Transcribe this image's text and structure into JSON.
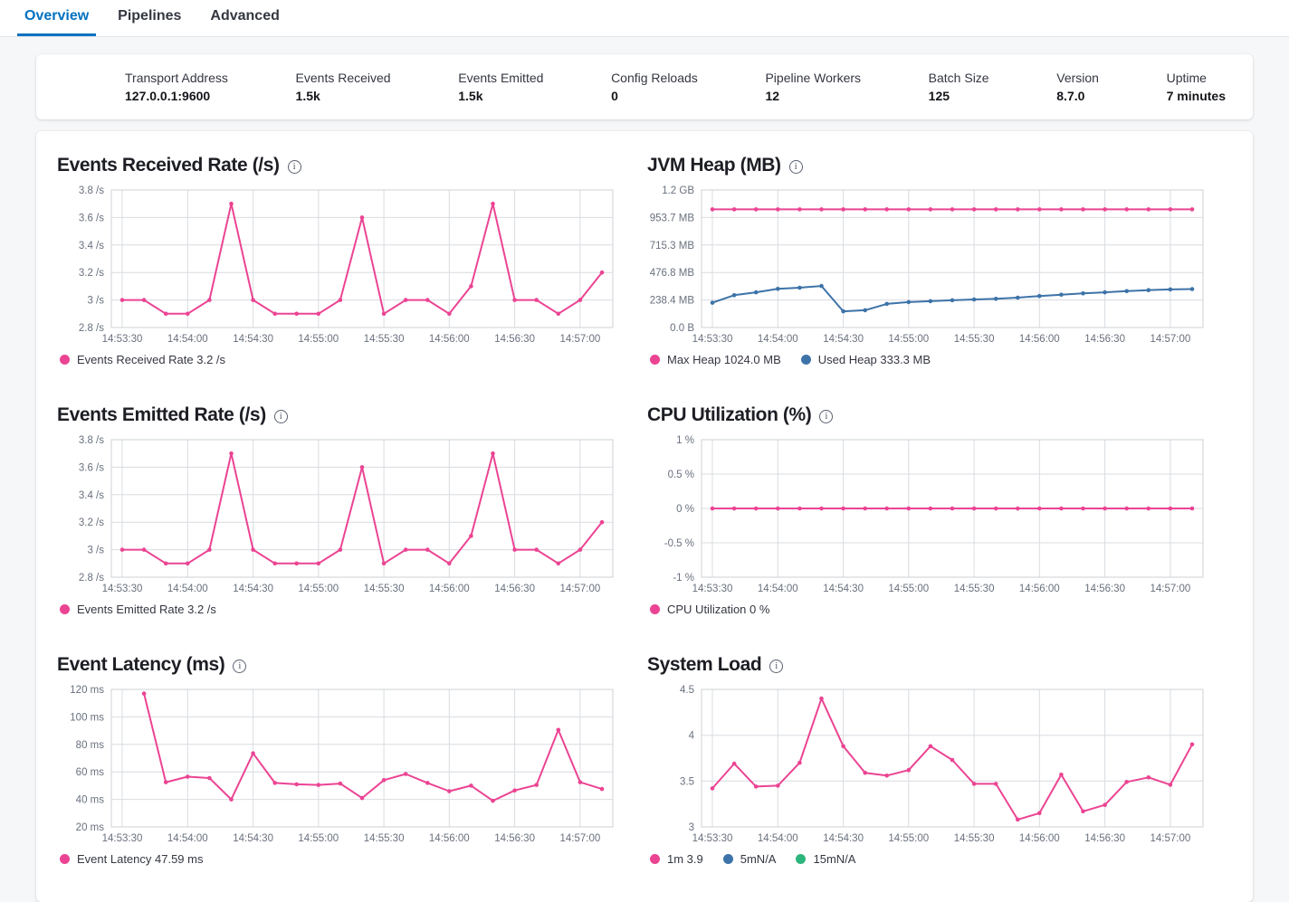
{
  "tabs": [
    {
      "label": "Overview",
      "active": true
    },
    {
      "label": "Pipelines",
      "active": false
    },
    {
      "label": "Advanced",
      "active": false
    }
  ],
  "icons": {
    "info": "i"
  },
  "stats": [
    {
      "label": "Transport Address",
      "value": "127.0.0.1:9600"
    },
    {
      "label": "Events Received",
      "value": "1.5k"
    },
    {
      "label": "Events Emitted",
      "value": "1.5k"
    },
    {
      "label": "Config Reloads",
      "value": "0"
    },
    {
      "label": "Pipeline Workers",
      "value": "12"
    },
    {
      "label": "Batch Size",
      "value": "125"
    },
    {
      "label": "Version",
      "value": "8.7.0"
    },
    {
      "label": "Uptime",
      "value": "7 minutes"
    }
  ],
  "colors": {
    "pink": "#EB4493",
    "blue": "#3D73A8",
    "green": "#2DB57B",
    "accent": "#0071C2",
    "grid": "#D9DCE1",
    "grid_border": "#CCD0D6",
    "tick_label": "#69707D"
  },
  "chart_data": [
    {
      "type": "line",
      "title": "Events Received Rate (/s)",
      "x_ticks": [
        "14:53:30",
        "14:54:00",
        "14:54:30",
        "14:55:00",
        "14:55:30",
        "14:56:00",
        "14:56:30",
        "14:57:00"
      ],
      "x": [
        "14:53:30",
        "14:53:40",
        "14:53:50",
        "14:54:00",
        "14:54:10",
        "14:54:20",
        "14:54:30",
        "14:54:40",
        "14:54:50",
        "14:55:00",
        "14:55:10",
        "14:55:20",
        "14:55:30",
        "14:55:40",
        "14:55:50",
        "14:56:00",
        "14:56:10",
        "14:56:20",
        "14:56:30",
        "14:56:40",
        "14:56:50",
        "14:57:00",
        "14:57:10"
      ],
      "ylim": [
        2.8,
        3.8
      ],
      "y_ticks": [
        {
          "v": 2.8,
          "t": "2.8 /s"
        },
        {
          "v": 3,
          "t": "3 /s"
        },
        {
          "v": 3.2,
          "t": "3.2 /s"
        },
        {
          "v": 3.4,
          "t": "3.4 /s"
        },
        {
          "v": 3.6,
          "t": "3.6 /s"
        },
        {
          "v": 3.8,
          "t": "3.8 /s"
        }
      ],
      "series": [
        {
          "name": "Events Received Rate",
          "color": "pink",
          "values": [
            3,
            3,
            2.9,
            2.9,
            3,
            3.7,
            3,
            2.9,
            2.9,
            2.9,
            3,
            3.6,
            2.9,
            3,
            3,
            2.9,
            3.1,
            3.7,
            3,
            3,
            2.9,
            3,
            3.2
          ]
        }
      ],
      "legend": [
        {
          "color": "pink",
          "label": "Events Received Rate 3.2 /s"
        }
      ]
    },
    {
      "type": "line",
      "title": "JVM Heap (MB)",
      "x_ticks": [
        "14:53:30",
        "14:54:00",
        "14:54:30",
        "14:55:00",
        "14:55:30",
        "14:56:00",
        "14:56:30",
        "14:57:00"
      ],
      "x": [
        "14:53:30",
        "14:53:40",
        "14:53:50",
        "14:54:00",
        "14:54:10",
        "14:54:20",
        "14:54:30",
        "14:54:40",
        "14:54:50",
        "14:55:00",
        "14:55:10",
        "14:55:20",
        "14:55:30",
        "14:55:40",
        "14:55:50",
        "14:56:00",
        "14:56:10",
        "14:56:20",
        "14:56:30",
        "14:56:40",
        "14:56:50",
        "14:57:00",
        "14:57:10"
      ],
      "ylim": [
        0,
        1192.1
      ],
      "y_ticks": [
        {
          "v": 0,
          "t": "0.0 B"
        },
        {
          "v": 238.4,
          "t": "238.4 MB"
        },
        {
          "v": 476.8,
          "t": "476.8 MB"
        },
        {
          "v": 715.3,
          "t": "715.3 MB"
        },
        {
          "v": 953.7,
          "t": "953.7 MB"
        },
        {
          "v": 1192.1,
          "t": "1.2 GB"
        }
      ],
      "series": [
        {
          "name": "Max Heap",
          "color": "pink",
          "values": [
            1024,
            1024,
            1024,
            1024,
            1024,
            1024,
            1024,
            1024,
            1024,
            1024,
            1024,
            1024,
            1024,
            1024,
            1024,
            1024,
            1024,
            1024,
            1024,
            1024,
            1024,
            1024,
            1024
          ]
        },
        {
          "name": "Used Heap",
          "color": "blue",
          "values": [
            215,
            280,
            305,
            335,
            345,
            360,
            140,
            150,
            205,
            220,
            228,
            236,
            243,
            249,
            259,
            273,
            285,
            296,
            305,
            315,
            324,
            330,
            333.3
          ]
        }
      ],
      "legend": [
        {
          "color": "pink",
          "label": "Max Heap 1024.0 MB"
        },
        {
          "color": "blue",
          "label": "Used Heap 333.3 MB"
        }
      ]
    },
    {
      "type": "line",
      "title": "Events Emitted Rate (/s)",
      "x_ticks": [
        "14:53:30",
        "14:54:00",
        "14:54:30",
        "14:55:00",
        "14:55:30",
        "14:56:00",
        "14:56:30",
        "14:57:00"
      ],
      "x": [
        "14:53:30",
        "14:53:40",
        "14:53:50",
        "14:54:00",
        "14:54:10",
        "14:54:20",
        "14:54:30",
        "14:54:40",
        "14:54:50",
        "14:55:00",
        "14:55:10",
        "14:55:20",
        "14:55:30",
        "14:55:40",
        "14:55:50",
        "14:56:00",
        "14:56:10",
        "14:56:20",
        "14:56:30",
        "14:56:40",
        "14:56:50",
        "14:57:00",
        "14:57:10"
      ],
      "ylim": [
        2.8,
        3.8
      ],
      "y_ticks": [
        {
          "v": 2.8,
          "t": "2.8 /s"
        },
        {
          "v": 3,
          "t": "3 /s"
        },
        {
          "v": 3.2,
          "t": "3.2 /s"
        },
        {
          "v": 3.4,
          "t": "3.4 /s"
        },
        {
          "v": 3.6,
          "t": "3.6 /s"
        },
        {
          "v": 3.8,
          "t": "3.8 /s"
        }
      ],
      "series": [
        {
          "name": "Events Emitted Rate",
          "color": "pink",
          "values": [
            3,
            3,
            2.9,
            2.9,
            3,
            3.7,
            3,
            2.9,
            2.9,
            2.9,
            3,
            3.6,
            2.9,
            3,
            3,
            2.9,
            3.1,
            3.7,
            3,
            3,
            2.9,
            3,
            3.2
          ]
        }
      ],
      "legend": [
        {
          "color": "pink",
          "label": "Events Emitted Rate 3.2 /s"
        }
      ]
    },
    {
      "type": "line",
      "title": "CPU Utilization (%)",
      "x_ticks": [
        "14:53:30",
        "14:54:00",
        "14:54:30",
        "14:55:00",
        "14:55:30",
        "14:56:00",
        "14:56:30",
        "14:57:00"
      ],
      "x": [
        "14:53:30",
        "14:53:40",
        "14:53:50",
        "14:54:00",
        "14:54:10",
        "14:54:20",
        "14:54:30",
        "14:54:40",
        "14:54:50",
        "14:55:00",
        "14:55:10",
        "14:55:20",
        "14:55:30",
        "14:55:40",
        "14:55:50",
        "14:56:00",
        "14:56:10",
        "14:56:20",
        "14:56:30",
        "14:56:40",
        "14:56:50",
        "14:57:00",
        "14:57:10"
      ],
      "ylim": [
        -1,
        1
      ],
      "y_ticks": [
        {
          "v": -1,
          "t": "-1 %"
        },
        {
          "v": -0.5,
          "t": "-0.5 %"
        },
        {
          "v": 0,
          "t": "0 %"
        },
        {
          "v": 0.5,
          "t": "0.5 %"
        },
        {
          "v": 1,
          "t": "1 %"
        }
      ],
      "series": [
        {
          "name": "CPU Utilization",
          "color": "pink",
          "values": [
            0,
            0,
            0,
            0,
            0,
            0,
            0,
            0,
            0,
            0,
            0,
            0,
            0,
            0,
            0,
            0,
            0,
            0,
            0,
            0,
            0,
            0,
            0
          ]
        }
      ],
      "legend": [
        {
          "color": "pink",
          "label": "CPU Utilization 0 %"
        }
      ]
    },
    {
      "type": "line",
      "title": "Event Latency (ms)",
      "x_ticks": [
        "14:53:30",
        "14:54:00",
        "14:54:30",
        "14:55:00",
        "14:55:30",
        "14:56:00",
        "14:56:30",
        "14:57:00"
      ],
      "x": [
        "14:53:40",
        "14:53:50",
        "14:54:00",
        "14:54:10",
        "14:54:20",
        "14:54:30",
        "14:54:40",
        "14:54:50",
        "14:55:00",
        "14:55:10",
        "14:55:20",
        "14:55:30",
        "14:55:40",
        "14:55:50",
        "14:56:00",
        "14:56:10",
        "14:56:20",
        "14:56:30",
        "14:56:40",
        "14:56:50",
        "14:57:00",
        "14:57:10"
      ],
      "ylim": [
        20,
        120
      ],
      "y_ticks": [
        {
          "v": 20,
          "t": "20 ms"
        },
        {
          "v": 40,
          "t": "40 ms"
        },
        {
          "v": 60,
          "t": "60 ms"
        },
        {
          "v": 80,
          "t": "80 ms"
        },
        {
          "v": 100,
          "t": "100 ms"
        },
        {
          "v": 120,
          "t": "120 ms"
        }
      ],
      "series": [
        {
          "name": "Event Latency",
          "color": "pink",
          "values": [
            117,
            52.5,
            56.5,
            55.5,
            40,
            73.5,
            52,
            51,
            50.5,
            51.5,
            41,
            54,
            58.5,
            52,
            46,
            50,
            39,
            46.5,
            50.5,
            90.5,
            52.5,
            47.59
          ]
        }
      ],
      "legend": [
        {
          "color": "pink",
          "label": "Event Latency 47.59 ms"
        }
      ]
    },
    {
      "type": "line",
      "title": "System Load",
      "x_ticks": [
        "14:53:30",
        "14:54:00",
        "14:54:30",
        "14:55:00",
        "14:55:30",
        "14:56:00",
        "14:56:30",
        "14:57:00"
      ],
      "x": [
        "14:53:30",
        "14:53:40",
        "14:53:50",
        "14:54:00",
        "14:54:10",
        "14:54:20",
        "14:54:30",
        "14:54:40",
        "14:54:50",
        "14:55:00",
        "14:55:10",
        "14:55:20",
        "14:55:30",
        "14:55:40",
        "14:55:50",
        "14:56:00",
        "14:56:10",
        "14:56:20",
        "14:56:30",
        "14:56:40",
        "14:56:50",
        "14:57:00",
        "14:57:10"
      ],
      "ylim": [
        3,
        4.5
      ],
      "y_ticks": [
        {
          "v": 3,
          "t": "3"
        },
        {
          "v": 3.5,
          "t": "3.5"
        },
        {
          "v": 4,
          "t": "4"
        },
        {
          "v": 4.5,
          "t": "4.5"
        }
      ],
      "series": [
        {
          "name": "1m",
          "color": "pink",
          "values": [
            3.42,
            3.69,
            3.44,
            3.45,
            3.7,
            4.4,
            3.88,
            3.59,
            3.56,
            3.62,
            3.88,
            3.73,
            3.47,
            3.47,
            3.08,
            3.15,
            3.57,
            3.17,
            3.24,
            3.49,
            3.54,
            3.46,
            3.9
          ]
        }
      ],
      "legend": [
        {
          "color": "pink",
          "label": "1m 3.9"
        },
        {
          "color": "blue",
          "label": "5mN/A"
        },
        {
          "color": "green",
          "label": "15mN/A"
        }
      ]
    }
  ]
}
